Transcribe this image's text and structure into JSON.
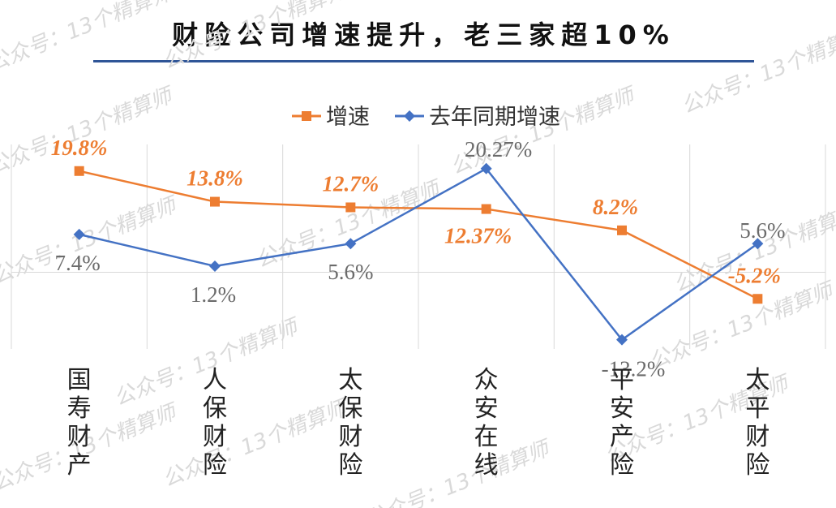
{
  "chart_data": {
    "type": "line",
    "title": "财险公司增速提升，老三家超10%",
    "categories": [
      "国寿财产",
      "人保财险",
      "太保财险",
      "众安在线",
      "平安产险",
      "太平财险"
    ],
    "series": [
      {
        "name": "增速",
        "color": "#ed7d31",
        "marker": "square",
        "values": [
          19.8,
          13.8,
          12.7,
          12.37,
          8.2,
          -5.2
        ],
        "labels": [
          "19.8%",
          "13.8%",
          "12.7%",
          "12.37%",
          "8.2%",
          "-5.2%"
        ]
      },
      {
        "name": "去年同期增速",
        "color": "#4472c4",
        "marker": "diamond",
        "values": [
          7.4,
          1.2,
          5.6,
          20.27,
          -13.2,
          5.6
        ],
        "labels": [
          "7.4%",
          "1.2%",
          "5.6%",
          "20.27%",
          "-13.2%",
          "5.6%"
        ]
      }
    ],
    "ylim": [
      -15,
      25
    ],
    "grid": "vertical",
    "legend": "top-center",
    "xlabel": "",
    "ylabel": ""
  },
  "watermark": "公众号：13个精算师"
}
